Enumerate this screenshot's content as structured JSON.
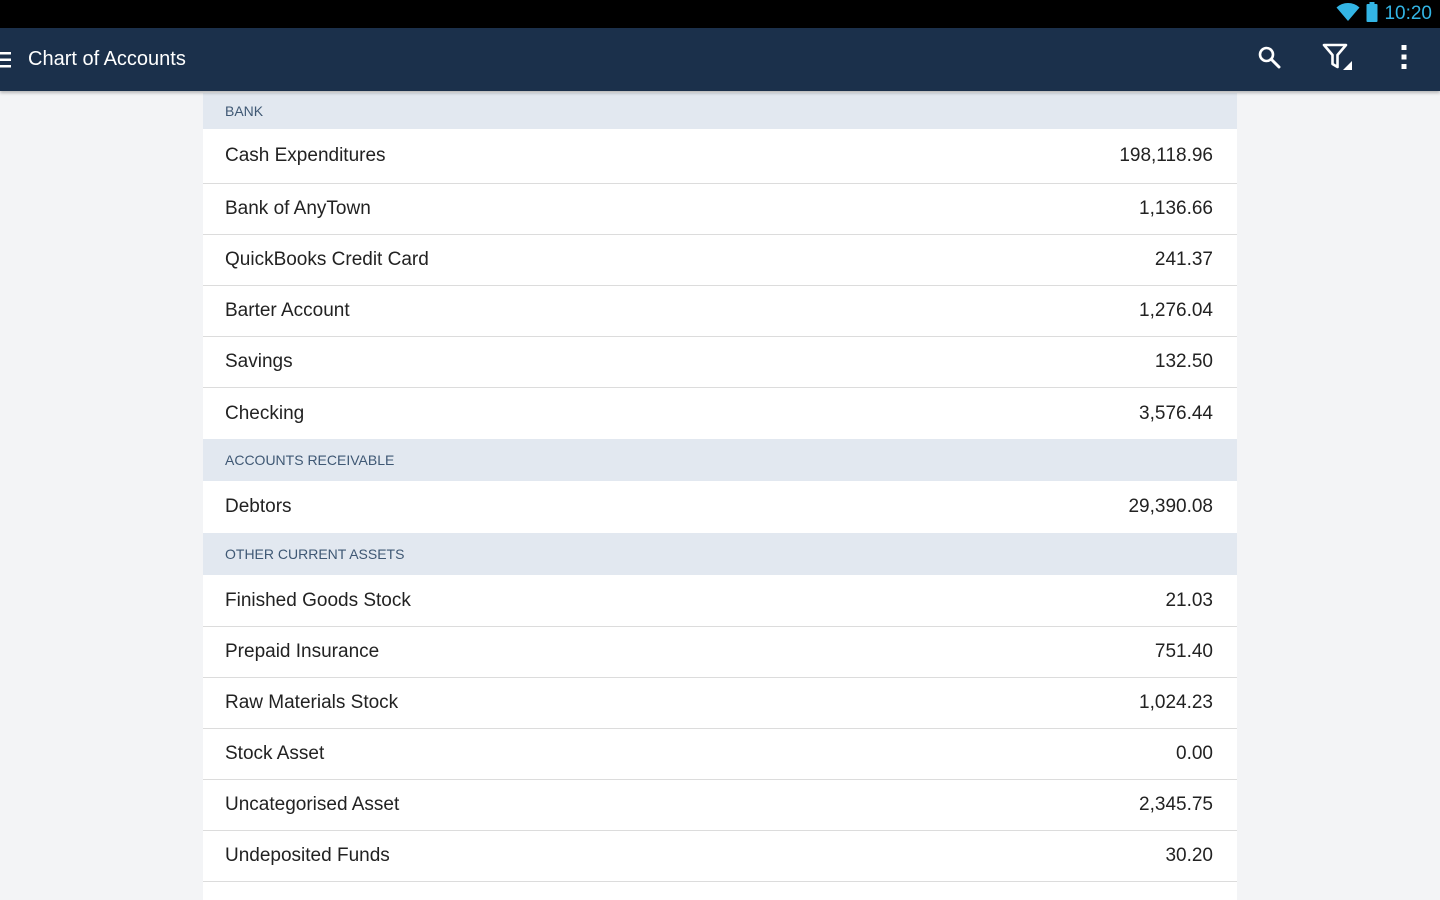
{
  "status_bar": {
    "time": "10:20",
    "accent": "#33b5e5"
  },
  "app_bar": {
    "title": "Chart of Accounts",
    "background": "#1b304b",
    "icons": [
      "menu-icon",
      "search-icon",
      "filter-icon",
      "overflow-menu-icon"
    ]
  },
  "sections": [
    {
      "header": "BANK",
      "accounts": [
        {
          "name": "Cash Expenditures",
          "amount": "198,118.96"
        },
        {
          "name": "Bank of AnyTown",
          "amount": "1,136.66"
        },
        {
          "name": "QuickBooks Credit Card",
          "amount": "241.37"
        },
        {
          "name": "Barter Account",
          "amount": "1,276.04"
        },
        {
          "name": "Savings",
          "amount": "132.50"
        },
        {
          "name": "Checking",
          "amount": "3,576.44"
        }
      ]
    },
    {
      "header": "ACCOUNTS RECEIVABLE",
      "accounts": [
        {
          "name": "Debtors",
          "amount": "29,390.08"
        }
      ]
    },
    {
      "header": "OTHER CURRENT ASSETS",
      "accounts": [
        {
          "name": "Finished Goods Stock",
          "amount": "21.03"
        },
        {
          "name": "Prepaid Insurance",
          "amount": "751.40"
        },
        {
          "name": "Raw Materials Stock",
          "amount": "1,024.23"
        },
        {
          "name": "Stock Asset",
          "amount": "0.00"
        },
        {
          "name": "Uncategorised Asset",
          "amount": "2,345.75"
        },
        {
          "name": "Undeposited Funds",
          "amount": "30.20"
        }
      ]
    }
  ]
}
